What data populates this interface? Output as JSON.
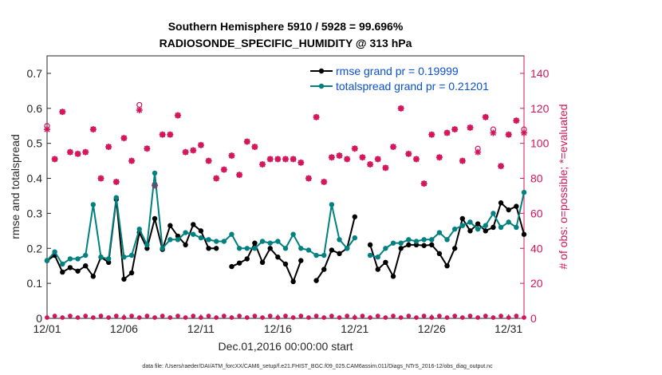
{
  "chart_data": {
    "type": "line",
    "title": "Southern Hemisphere 5910 / 5928 = 99.696%",
    "subtitle": "RADIOSONDE_SPECIFIC_HUMIDITY @ 313 hPa",
    "xlabel": "Dec.01,2016 00:00:00 start",
    "ylabel": "rmse and totalspread",
    "y2label": "# of obs: o=possible; *=evaluated",
    "xlim": [
      1,
      32
    ],
    "ylim": [
      0,
      0.75
    ],
    "y2lim": [
      0,
      150
    ],
    "xticks": [
      1,
      6,
      11,
      16,
      21,
      26,
      31
    ],
    "xtick_labels": [
      "12/01",
      "12/06",
      "12/11",
      "12/16",
      "12/21",
      "12/26",
      "12/31"
    ],
    "yticks": [
      0,
      0.1,
      0.2,
      0.3,
      0.4,
      0.5,
      0.6,
      0.7
    ],
    "ytick_labels": [
      "0",
      "0.1",
      "0.2",
      "0.3",
      "0.4",
      "0.5",
      "0.6",
      "0.7"
    ],
    "y2ticks": [
      0,
      20,
      40,
      60,
      80,
      100,
      120,
      140
    ],
    "y2tick_labels": [
      "0",
      "20",
      "40",
      "60",
      "80",
      "100",
      "120",
      "140"
    ],
    "footnote": "data file: /Users/raeder/DAI/ATM_forcXX/CAM6_setup/f.e21.FHIST_BGC.f09_025.CAM6assim.011/Diags_NTrS_2016-12/obs_diag_output.nc",
    "legend": [
      {
        "label": "rmse grand pr = 0.19999",
        "color": "#0a50d0"
      },
      {
        "label": "totalspread grand pr = 0.21201",
        "color": "#0a50d0"
      }
    ],
    "x": [
      1.0,
      1.5,
      2.0,
      2.5,
      3.0,
      3.5,
      4.0,
      4.5,
      5.0,
      5.5,
      6.0,
      6.5,
      7.0,
      7.5,
      8.0,
      8.5,
      9.0,
      9.5,
      10.0,
      10.5,
      11.0,
      11.5,
      12.0,
      12.5,
      13.0,
      13.5,
      14.0,
      14.5,
      15.0,
      15.5,
      16.0,
      16.5,
      17.0,
      17.5,
      18.0,
      18.5,
      19.0,
      19.5,
      20.0,
      20.5,
      21.0,
      21.5,
      22.0,
      22.5,
      23.0,
      23.5,
      24.0,
      24.5,
      25.0,
      25.5,
      26.0,
      26.5,
      27.0,
      27.5,
      28.0,
      28.5,
      29.0,
      29.5,
      30.0,
      30.5,
      31.0,
      31.5,
      32.0
    ],
    "series": [
      {
        "name": "rmse",
        "color": "#000000",
        "values": [
          0.165,
          0.18,
          0.132,
          0.145,
          0.135,
          0.15,
          0.12,
          0.175,
          0.16,
          0.34,
          0.112,
          0.13,
          0.245,
          0.2,
          0.285,
          0.197,
          0.265,
          0.235,
          0.21,
          0.268,
          0.25,
          0.2,
          0.2,
          null,
          0.148,
          0.158,
          0.17,
          0.215,
          0.16,
          0.2,
          0.175,
          0.155,
          0.105,
          0.165,
          null,
          0.108,
          0.14,
          0.195,
          0.185,
          0.2,
          0.29,
          null,
          0.21,
          0.14,
          0.16,
          0.12,
          0.2,
          0.21,
          0.21,
          0.208,
          0.21,
          0.185,
          0.15,
          0.2,
          0.285,
          0.25,
          0.27,
          0.25,
          0.26,
          0.33,
          0.31,
          0.32,
          0.24
        ],
        "gaps_note": "null = no data"
      },
      {
        "name": "totalspread",
        "color": "#008080",
        "values": [
          0.165,
          0.19,
          0.155,
          0.17,
          0.17,
          0.18,
          0.325,
          0.175,
          0.17,
          0.345,
          0.175,
          0.18,
          0.255,
          0.21,
          0.415,
          0.2,
          0.225,
          0.225,
          0.245,
          0.24,
          0.23,
          0.225,
          0.22,
          0.22,
          0.24,
          0.2,
          0.2,
          0.2,
          0.22,
          0.215,
          0.22,
          0.2,
          0.24,
          0.2,
          0.195,
          0.18,
          0.18,
          0.325,
          0.225,
          0.2,
          0.23,
          null,
          0.18,
          0.175,
          0.2,
          0.215,
          0.215,
          0.225,
          0.22,
          0.225,
          0.225,
          0.245,
          0.225,
          0.255,
          0.265,
          0.275,
          0.255,
          0.265,
          0.3,
          0.26,
          0.275,
          0.26,
          0.36
        ]
      }
    ],
    "obs_possible": {
      "name": "possible",
      "marker": "o",
      "color": "#d4145a",
      "values": [
        110,
        91,
        118,
        95,
        94,
        95,
        108,
        80,
        98,
        78,
        103,
        90,
        122,
        97,
        76,
        105,
        105,
        116,
        95,
        96,
        99,
        90,
        80,
        85,
        93,
        82,
        101,
        98,
        88,
        91,
        91,
        91,
        91,
        89,
        80,
        115,
        78,
        92,
        93,
        91,
        97,
        92,
        88,
        91,
        86,
        98,
        120,
        94,
        91,
        77,
        105,
        92,
        106,
        108,
        90,
        109,
        97,
        115,
        108,
        87,
        105,
        113,
        108
      ]
    },
    "obs_evaluated": {
      "name": "evaluated",
      "marker": "*",
      "color": "#d4145a",
      "values": [
        108,
        91,
        118,
        95,
        94,
        95,
        108,
        80,
        98,
        78,
        103,
        90,
        119,
        97,
        76,
        105,
        105,
        116,
        95,
        96,
        99,
        90,
        80,
        85,
        93,
        82,
        101,
        98,
        88,
        91,
        91,
        91,
        91,
        89,
        80,
        115,
        78,
        92,
        93,
        91,
        97,
        92,
        88,
        91,
        86,
        98,
        120,
        94,
        91,
        77,
        105,
        92,
        106,
        108,
        90,
        109,
        95,
        115,
        106,
        87,
        105,
        113,
        106
      ]
    },
    "obs_bottom": {
      "name": "zero-count markers",
      "values_note": "markers near zero across the x-axis"
    }
  }
}
